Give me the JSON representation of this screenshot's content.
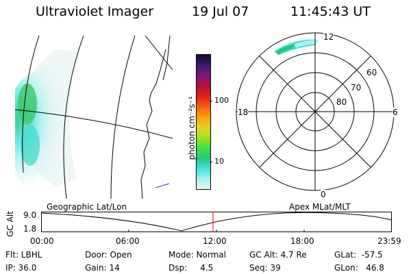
{
  "header": {
    "title": "Ultraviolet Imager",
    "date": "19 Jul 07",
    "time": "11:45:43 UT"
  },
  "colorbar": {
    "unit_label": "photon cm⁻²s⁻¹",
    "ticks": [
      "100",
      "10"
    ],
    "colors": [
      "#1a0a33",
      "#3d1a6b",
      "#7a1a7a",
      "#b0103a",
      "#e0201a",
      "#f06010",
      "#f8a010",
      "#e8d020",
      "#a8e020",
      "#40e040",
      "#20c880",
      "#40e0e0",
      "#a0f0f0",
      "#e8f8f8"
    ]
  },
  "polar_plot": {
    "mlt_labels": {
      "top": "12",
      "left": "18",
      "right": "6",
      "bottom": "0"
    },
    "lat_labels": [
      "60",
      "70",
      "80"
    ]
  },
  "orbit_panel": {
    "left_title": "Geographic Lat/Lon",
    "right_title": "Apex MLat/MLT",
    "ylabel": "GC Alt",
    "ytick_top": "9.0",
    "ytick_bottom": "1.8",
    "xticks": [
      "00:00",
      "06:00",
      "12:00",
      "18:00",
      "23:59"
    ]
  },
  "status": {
    "flt": "Flt: LBHL",
    "ip": "IP: 36.0",
    "door": "Door: Open",
    "gain": "Gain: 14",
    "mode": "Mode: Normal",
    "dsp": "Dsp:     4.5",
    "gc_alt": "GC Alt: 4.7 Re",
    "seq": "Seq: 39",
    "glat": "GLat:  -57.5",
    "glon": "GLon:   46.8"
  }
}
